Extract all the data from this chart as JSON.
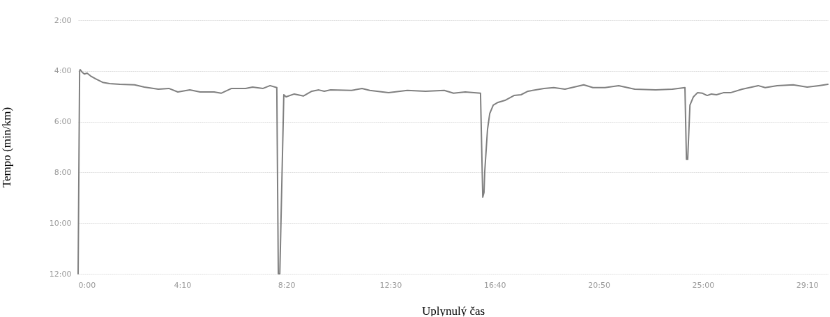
{
  "chart_data": {
    "type": "line",
    "xlabel": "Uplynulý čas",
    "ylabel": "Tempo (min/km)",
    "x": [
      0,
      0.06,
      0.08,
      0.17,
      0.25,
      0.36,
      0.5,
      0.7,
      0.98,
      1.26,
      1.67,
      2.26,
      2.65,
      3.21,
      3.63,
      3.99,
      4.47,
      4.88,
      5.44,
      5.72,
      6.14,
      6.7,
      6.98,
      7.4,
      7.68,
      7.95,
      8.01,
      8.07,
      8.23,
      8.32,
      8.65,
      9.01,
      9.35,
      9.63,
      9.85,
      10.1,
      10.94,
      11.36,
      11.67,
      12.42,
      13.17,
      13.9,
      14.65,
      15.02,
      15.49,
      16.1,
      16.19,
      16.24,
      16.27,
      16.38,
      16.47,
      16.61,
      16.8,
      17.08,
      17.44,
      17.72,
      18.0,
      18.64,
      19.03,
      19.48,
      20.23,
      20.6,
      21.08,
      21.63,
      22.27,
      23.11,
      23.78,
      24.28,
      24.34,
      24.39,
      24.48,
      24.62,
      24.78,
      24.98,
      25.17,
      25.34,
      25.54,
      25.82,
      26.1,
      26.57,
      27.21,
      27.49,
      27.97,
      28.61,
      29.17,
      29.64,
      30.0
    ],
    "series": [
      {
        "color": "#808080",
        "values": [
          12.0,
          4.01,
          3.95,
          4.06,
          4.12,
          4.09,
          4.2,
          4.31,
          4.45,
          4.5,
          4.53,
          4.55,
          4.64,
          4.72,
          4.69,
          4.83,
          4.75,
          4.83,
          4.83,
          4.88,
          4.69,
          4.69,
          4.64,
          4.69,
          4.58,
          4.66,
          12.0,
          12.0,
          4.94,
          5.02,
          4.91,
          4.99,
          4.8,
          4.75,
          4.8,
          4.75,
          4.77,
          4.69,
          4.77,
          4.86,
          4.77,
          4.8,
          4.77,
          4.88,
          4.83,
          4.88,
          8.98,
          8.79,
          7.96,
          6.31,
          5.68,
          5.35,
          5.24,
          5.16,
          4.97,
          4.94,
          4.8,
          4.69,
          4.66,
          4.72,
          4.55,
          4.66,
          4.66,
          4.58,
          4.72,
          4.75,
          4.72,
          4.66,
          7.49,
          7.49,
          5.35,
          5.02,
          4.86,
          4.88,
          4.97,
          4.91,
          4.94,
          4.86,
          4.86,
          4.72,
          4.58,
          4.66,
          4.58,
          4.55,
          4.64,
          4.58,
          4.53
        ]
      }
    ],
    "xlim": [
      0,
      30
    ],
    "xticks": [
      {
        "value": 0,
        "label": "0:00"
      },
      {
        "value": 4.1667,
        "label": "4:10"
      },
      {
        "value": 8.3333,
        "label": "8:20"
      },
      {
        "value": 12.5,
        "label": "12:30"
      },
      {
        "value": 16.6667,
        "label": "16:40"
      },
      {
        "value": 20.8333,
        "label": "20:50"
      },
      {
        "value": 25,
        "label": "25:00"
      },
      {
        "value": 29.1667,
        "label": "29:10"
      }
    ],
    "ylim": [
      12,
      2
    ],
    "yticks": [
      {
        "value": 2,
        "label": "2:00"
      },
      {
        "value": 4,
        "label": "4:00"
      },
      {
        "value": 6,
        "label": "6:00"
      },
      {
        "value": 8,
        "label": "8:00"
      },
      {
        "value": 10,
        "label": "10:00"
      },
      {
        "value": 12,
        "label": "12:00"
      }
    ],
    "grid": "y",
    "line_style": "solid"
  }
}
